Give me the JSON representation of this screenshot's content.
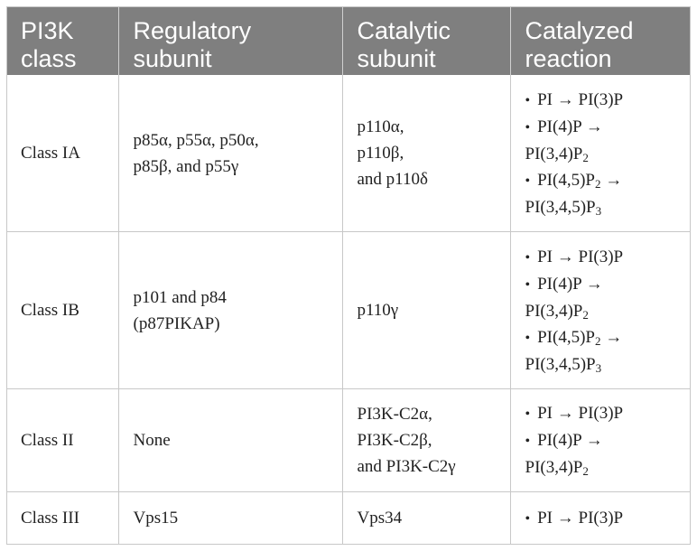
{
  "table": {
    "headers": [
      "PI3K class",
      "Regulatory subunit",
      "Catalytic subunit",
      "Catalyzed reaction"
    ],
    "rows": [
      {
        "class": "Class IA",
        "regulatory": [
          "p85α, p55α, p50α,",
          "p85β, and p55γ"
        ],
        "catalytic": [
          "p110α,",
          "p110β,",
          "and p110δ"
        ],
        "reactions": [
          {
            "from": "PI → PI(3)P",
            "to": ""
          },
          {
            "from": "PI(4)P →",
            "to": "PI(3,4)P",
            "to_sub": "2"
          },
          {
            "from": "PI(4,5)P",
            "from_sub": "2",
            "from_tail": " →",
            "to": "PI(3,4,5)P",
            "to_sub": "3"
          }
        ]
      },
      {
        "class": "Class IB",
        "regulatory": [
          "p101 and p84",
          "(p87PIKAP)"
        ],
        "catalytic": [
          "p110γ"
        ],
        "reactions": [
          {
            "from": "PI → PI(3)P",
            "to": ""
          },
          {
            "from": "PI(4)P →",
            "to": "PI(3,4)P",
            "to_sub": "2"
          },
          {
            "from": "PI(4,5)P",
            "from_sub": "2",
            "from_tail": " →",
            "to": "PI(3,4,5)P",
            "to_sub": "3"
          }
        ]
      },
      {
        "class": "Class II",
        "regulatory": [
          "None"
        ],
        "catalytic": [
          "PI3K-C2α,",
          "PI3K-C2β,",
          "and PI3K-C2γ"
        ],
        "reactions": [
          {
            "from": "PI → PI(3)P",
            "to": ""
          },
          {
            "from": "PI(4)P →",
            "to": "PI(3,4)P",
            "to_sub": "2"
          }
        ]
      },
      {
        "class": "Class III",
        "regulatory": [
          "Vps15"
        ],
        "catalytic": [
          "Vps34"
        ],
        "reactions": [
          {
            "from": "PI → PI(3)P",
            "to": ""
          }
        ]
      }
    ]
  },
  "colors": {
    "header_bg": "#7f7f7f",
    "header_text": "#ffffff",
    "grid": "#c8c8c8",
    "body_text": "#222222"
  }
}
